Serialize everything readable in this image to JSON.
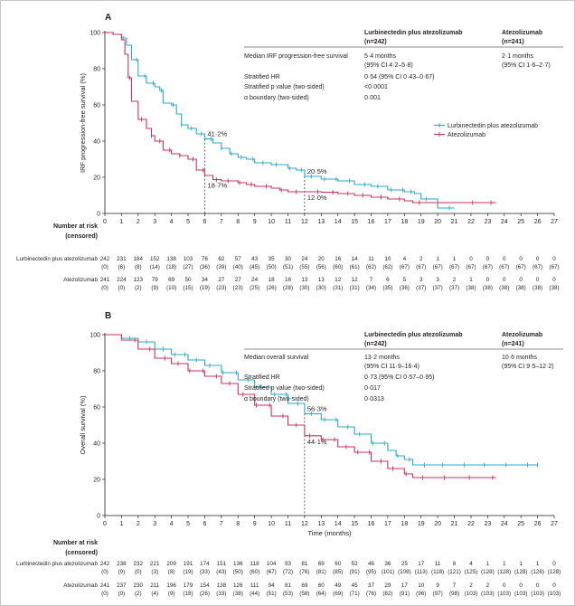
{
  "chart_data": [
    {
      "type": "line",
      "panel_label": "A",
      "ylabel": "IRF progression-free survival (%)",
      "xlabel": "",
      "xlim": [
        0,
        27
      ],
      "ylim": [
        0,
        100
      ],
      "x_ticks": [
        "0",
        "1",
        "2",
        "3",
        "4",
        "5",
        "6",
        "7",
        "8",
        "9",
        "10",
        "11",
        "12",
        "13",
        "14",
        "15",
        "16",
        "17",
        "18",
        "19",
        "20",
        "21",
        "22",
        "23",
        "24",
        "25",
        "26",
        "27"
      ],
      "y_ticks": [
        "0",
        "20",
        "40",
        "60",
        "80",
        "100"
      ],
      "grid": false,
      "legend_position": "right",
      "series": [
        {
          "name": "Lurbinectedin plus atezolizumab",
          "color": "#2ba8c5",
          "points": [
            [
              0,
              100
            ],
            [
              0.5,
              99
            ],
            [
              1,
              97
            ],
            [
              1.3,
              93
            ],
            [
              1.6,
              85
            ],
            [
              2,
              76
            ],
            [
              2.5,
              72
            ],
            [
              3,
              70
            ],
            [
              3.3,
              68
            ],
            [
              3.5,
              61
            ],
            [
              4,
              60
            ],
            [
              4.3,
              55
            ],
            [
              4.6,
              49
            ],
            [
              5,
              47
            ],
            [
              5.5,
              44
            ],
            [
              6,
              41.2
            ],
            [
              6.5,
              39
            ],
            [
              7,
              36
            ],
            [
              7.5,
              33
            ],
            [
              8,
              31
            ],
            [
              8.5,
              30
            ],
            [
              9,
              28
            ],
            [
              10,
              27
            ],
            [
              11,
              25
            ],
            [
              11.5,
              24
            ],
            [
              12,
              20.5
            ],
            [
              13,
              19
            ],
            [
              14,
              18
            ],
            [
              15,
              16
            ],
            [
              16,
              15
            ],
            [
              17,
              13
            ],
            [
              18,
              12
            ],
            [
              18.6,
              11
            ],
            [
              19,
              8
            ],
            [
              20,
              3
            ],
            [
              21,
              3
            ]
          ],
          "censor_x": [
            1.1,
            1.9,
            2.4,
            2.9,
            3.4,
            4.1,
            4.6,
            5.2,
            5.8,
            6.4,
            7.0,
            7.6,
            8.2,
            8.9,
            9.5,
            10.3,
            11.1,
            11.8,
            12.4,
            13.2,
            13.9,
            14.7,
            15.6,
            16.4,
            17.2,
            17.9,
            18.4,
            19.3,
            20.7
          ]
        },
        {
          "name": "Atezolizumab",
          "color": "#c4345e",
          "points": [
            [
              0,
              100
            ],
            [
              0.5,
              99
            ],
            [
              1,
              96
            ],
            [
              1.2,
              88
            ],
            [
              1.4,
              75
            ],
            [
              1.6,
              62
            ],
            [
              2,
              52
            ],
            [
              2.5,
              47
            ],
            [
              2.8,
              43
            ],
            [
              3,
              40
            ],
            [
              3.5,
              35
            ],
            [
              4,
              33
            ],
            [
              4.5,
              32
            ],
            [
              5,
              30
            ],
            [
              5.5,
              24
            ],
            [
              6,
              21
            ],
            [
              6.5,
              18.7
            ],
            [
              7,
              18
            ],
            [
              8,
              17
            ],
            [
              8.5,
              16
            ],
            [
              9,
              15
            ],
            [
              10,
              14
            ],
            [
              10.5,
              13
            ],
            [
              11,
              12
            ],
            [
              12,
              12.0
            ],
            [
              13,
              11.7
            ],
            [
              14,
              11
            ],
            [
              15,
              10
            ],
            [
              16,
              9
            ],
            [
              17,
              8
            ],
            [
              18,
              7
            ],
            [
              18.5,
              6
            ],
            [
              23.5,
              6
            ]
          ],
          "censor_x": [
            1.5,
            2.2,
            2.8,
            3.3,
            3.9,
            4.5,
            5.3,
            5.9,
            6.7,
            7.4,
            8.1,
            8.8,
            9.7,
            10.6,
            11.5,
            12.8,
            13.7,
            14.6,
            15.5,
            16.6,
            17.7,
            18.9,
            22.1,
            23.2
          ]
        }
      ],
      "annotations": [
        {
          "text": "41·2%",
          "x": 6,
          "y": 41.2
        },
        {
          "text": "18·7%",
          "x": 6,
          "y": 18.7
        },
        {
          "text": "20·5%",
          "x": 12,
          "y": 20.5
        },
        {
          "text": "12·0%",
          "x": 12,
          "y": 12.0
        }
      ],
      "reference_lines_x": [
        6,
        12
      ],
      "stats_table": {
        "headers": [
          "Lurbinectedin plus atezolizumab (n=242)",
          "Atezolizumab (n=241)"
        ],
        "rows": [
          {
            "label": "Median IRF progression-free survival",
            "col1": "5·4 months",
            "col1_sub": "(95% CI 4·2–5·8)",
            "col2": "2·1 months",
            "col2_sub": "(95% CI 1·6–2·7)"
          },
          {
            "label": "Stratified HR",
            "col1": "0·54 (95% CI 0·43–0·67)",
            "col2": ""
          },
          {
            "label": "Stratified p value (two-sided)",
            "col1": "<0·0001",
            "col2": ""
          },
          {
            "label": "α boundary (two-sided)",
            "col1": "0·001",
            "col2": ""
          }
        ]
      },
      "at_risk": {
        "title": "Number at risk",
        "subtitle": "(censored)",
        "rows": [
          {
            "label": "Lurbinectedin plus atezolizumab",
            "counts": [
              "242",
              "231",
              "184",
              "152",
              "138",
              "103",
              "76",
              "62",
              "57",
              "43",
              "35",
              "30",
              "24",
              "20",
              "16",
              "14",
              "11",
              "10",
              "4",
              "2",
              "1",
              "1",
              "0",
              "0",
              "0",
              "0",
              "0",
              "0"
            ],
            "censored": [
              "(0)",
              "(6)",
              "(8)",
              "(14)",
              "(18)",
              "(27)",
              "(36)",
              "(39)",
              "(40)",
              "(45)",
              "(50)",
              "(51)",
              "(55)",
              "(56)",
              "(60)",
              "(61)",
              "(62)",
              "(62)",
              "(67)",
              "(67)",
              "(67)",
              "(67)",
              "(67)",
              "(67)",
              "(67)",
              "(67)",
              "(67)",
              "(67)"
            ]
          },
          {
            "label": "Atezolizumab",
            "counts": [
              "241",
              "224",
              "123",
              "79",
              "69",
              "50",
              "34",
              "27",
              "27",
              "24",
              "18",
              "16",
              "13",
              "13",
              "12",
              "12",
              "7",
              "6",
              "5",
              "3",
              "3",
              "2",
              "1",
              "0",
              "0",
              "0",
              "0",
              "0"
            ],
            "censored": [
              "(0)",
              "(0)",
              "(2)",
              "(9)",
              "(10)",
              "(15)",
              "(19)",
              "(23)",
              "(23)",
              "(25)",
              "(26)",
              "(28)",
              "(30)",
              "(30)",
              "(31)",
              "(31)",
              "(34)",
              "(35)",
              "(36)",
              "(37)",
              "(37)",
              "(37)",
              "(38)",
              "(38)",
              "(38)",
              "(38)",
              "(38)",
              "(38)"
            ]
          }
        ]
      }
    },
    {
      "type": "line",
      "panel_label": "B",
      "ylabel": "Overall survival (%)",
      "xlabel": "Time (months)",
      "xlim": [
        0,
        27
      ],
      "ylim": [
        0,
        100
      ],
      "x_ticks": [
        "0",
        "1",
        "2",
        "3",
        "4",
        "5",
        "6",
        "7",
        "8",
        "9",
        "10",
        "11",
        "12",
        "13",
        "14",
        "15",
        "16",
        "17",
        "18",
        "19",
        "20",
        "21",
        "22",
        "23",
        "24",
        "25",
        "26",
        "27"
      ],
      "y_ticks": [
        "0",
        "20",
        "40",
        "60",
        "80",
        "100"
      ],
      "grid": false,
      "series": [
        {
          "name": "Lurbinectedin plus atezolizumab",
          "color": "#2ba8c5",
          "points": [
            [
              0,
              100
            ],
            [
              1,
              98
            ],
            [
              2,
              96
            ],
            [
              3,
              92
            ],
            [
              4,
              89
            ],
            [
              5,
              86
            ],
            [
              6,
              83
            ],
            [
              7,
              79
            ],
            [
              8,
              75
            ],
            [
              9,
              71
            ],
            [
              10,
              67
            ],
            [
              11,
              62
            ],
            [
              12,
              56.3
            ],
            [
              13,
              53
            ],
            [
              14,
              49
            ],
            [
              15,
              45
            ],
            [
              16,
              40
            ],
            [
              17,
              36
            ],
            [
              17.5,
              33
            ],
            [
              18,
              31
            ],
            [
              18.5,
              28
            ],
            [
              26,
              28
            ]
          ],
          "censor_x": [
            1.5,
            2.5,
            3.5,
            4.2,
            4.8,
            5.5,
            6.3,
            7.1,
            7.9,
            8.6,
            9.4,
            10.2,
            10.9,
            11.6,
            12.4,
            13.2,
            13.9,
            14.6,
            15.3,
            16.1,
            16.8,
            17.6,
            18.3,
            19.2,
            20.3,
            21.6,
            22.8,
            24.1,
            25.4,
            26
          ]
        },
        {
          "name": "Atezolizumab",
          "color": "#c4345e",
          "points": [
            [
              0,
              100
            ],
            [
              1,
              97
            ],
            [
              2,
              92
            ],
            [
              3,
              87
            ],
            [
              4,
              84
            ],
            [
              5,
              80
            ],
            [
              6,
              77
            ],
            [
              7,
              73
            ],
            [
              8,
              67
            ],
            [
              9,
              61
            ],
            [
              10,
              55
            ],
            [
              11,
              50
            ],
            [
              12,
              44.1
            ],
            [
              13,
              42
            ],
            [
              14,
              38
            ],
            [
              15,
              35
            ],
            [
              16,
              30
            ],
            [
              17,
              26
            ],
            [
              18,
              23
            ],
            [
              18.5,
              21
            ],
            [
              23.5,
              21
            ]
          ],
          "censor_x": [
            1.8,
            2.7,
            3.6,
            4.4,
            5.1,
            5.9,
            6.7,
            7.5,
            8.3,
            9.1,
            9.9,
            10.7,
            11.5,
            12.3,
            13.1,
            13.8,
            14.5,
            15.2,
            15.9,
            16.6,
            17.3,
            18.1,
            19.1,
            20.4,
            21.9,
            23.3
          ]
        }
      ],
      "annotations": [
        {
          "text": "56·3%",
          "x": 12,
          "y": 56.3
        },
        {
          "text": "44·1%",
          "x": 12,
          "y": 44.1
        }
      ],
      "reference_lines_x": [
        12
      ],
      "stats_table": {
        "headers": [
          "Lurbinectedin plus atezolizumab (n=242)",
          "Atezolizumab (n=241)"
        ],
        "rows": [
          {
            "label": "Median overall survival",
            "col1": "13·2 months",
            "col1_sub": "(95% CI 11·9–16·4)",
            "col2": "10·6 months",
            "col2_sub": "(95% CI 9·5–12·2)"
          },
          {
            "label": "Stratified HR",
            "col1": "0·73 (95% CI 0·57–0·95)",
            "col2": ""
          },
          {
            "label": "Stratified p value (two-sided)",
            "col1": "0·017",
            "col2": ""
          },
          {
            "label": "α boundary (two-sided)",
            "col1": "0·0313",
            "col2": ""
          }
        ]
      },
      "at_risk": {
        "title": "Number at risk",
        "subtitle": "(censored)",
        "rows": [
          {
            "label": "Lurbinectedin plus atezolizumab",
            "counts": [
              "242",
              "238",
              "232",
              "221",
              "209",
              "191",
              "174",
              "151",
              "136",
              "118",
              "104",
              "93",
              "81",
              "69",
              "60",
              "52",
              "46",
              "36",
              "25",
              "17",
              "11",
              "8",
              "4",
              "1",
              "1",
              "1",
              "1",
              "0"
            ],
            "censored": [
              "(0)",
              "(0)",
              "(0)",
              "(3)",
              "(8)",
              "(19)",
              "(33)",
              "(43)",
              "(50)",
              "(60)",
              "(67)",
              "(72)",
              "(76)",
              "(81)",
              "(85)",
              "(91)",
              "(95)",
              "(101)",
              "(108)",
              "(113)",
              "(118)",
              "(121)",
              "(125)",
              "(128)",
              "(128)",
              "(128)",
              "(128)",
              "(128)"
            ]
          },
          {
            "label": "Atezolizumab",
            "counts": [
              "241",
              "237",
              "230",
              "211",
              "196",
              "179",
              "154",
              "138",
              "126",
              "111",
              "94",
              "81",
              "69",
              "60",
              "49",
              "45",
              "37",
              "29",
              "17",
              "10",
              "9",
              "7",
              "2",
              "2",
              "0",
              "0",
              "0",
              "0"
            ],
            "censored": [
              "(0)",
              "(0)",
              "(2)",
              "(4)",
              "(9)",
              "(18)",
              "(26)",
              "(33)",
              "(38)",
              "(44)",
              "(51)",
              "(53)",
              "(58)",
              "(64)",
              "(69)",
              "(71)",
              "(76)",
              "(82)",
              "(91)",
              "(96)",
              "(97)",
              "(98)",
              "(103)",
              "(103)",
              "(103)",
              "(103)",
              "(103)",
              "(103)"
            ]
          }
        ]
      }
    }
  ]
}
